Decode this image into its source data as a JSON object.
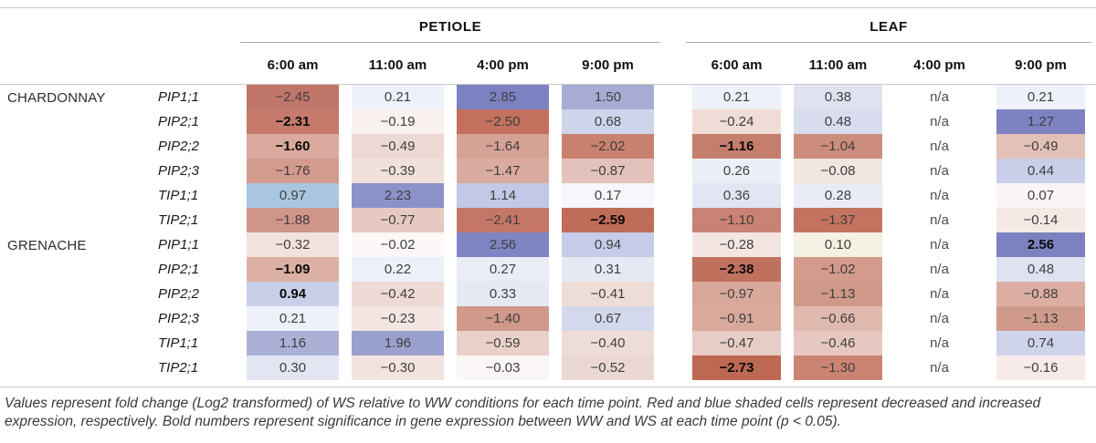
{
  "figure": {
    "groups": {
      "petiole": "PETIOLE",
      "leaf": "LEAF"
    },
    "time_headers": [
      "6:00 am",
      "11:00 am",
      "4:00 pm",
      "9:00 pm"
    ],
    "caption": "Values represent fold change (Log2 transformed) of WS relative to WW conditions for each time point. Red and blue shaded cells represent decreased and increased expression, respectively. Bold numbers represent significance in gene expression between WW and WS at each time point (p < 0.05).",
    "colors": {
      "decreased_strong": "#bd6852",
      "increased_strong": "#7c81c1",
      "neutral": "#ffffff",
      "rule_gray": "#c9c9c9"
    }
  },
  "chart_data": {
    "type": "heatmap",
    "title": "Fold change (Log2) of WS relative to WW",
    "column_groups": [
      "PETIOLE",
      "LEAF"
    ],
    "columns": [
      "PETIOLE 6:00 am",
      "PETIOLE 11:00 am",
      "PETIOLE 4:00 pm",
      "PETIOLE 9:00 pm",
      "LEAF 6:00 am",
      "LEAF 11:00 am",
      "LEAF 4:00 pm",
      "LEAF 9:00 pm"
    ],
    "legend": "red = decreased expression, blue = increased expression, bold = significant (p < 0.05)",
    "rows": [
      {
        "variety": "CHARDONNAY",
        "gene": "PIP1;1",
        "cells": [
          {
            "value": "−2.45",
            "bold": false,
            "color": "#c1766a"
          },
          {
            "value": "0.21",
            "bold": false,
            "color": "#eef1f9"
          },
          {
            "value": "2.85",
            "bold": false,
            "color": "#7c81c1"
          },
          {
            "value": "1.50",
            "bold": false,
            "color": "#a7acd4"
          },
          {
            "value": "0.21",
            "bold": false,
            "color": "#eef1f9"
          },
          {
            "value": "0.38",
            "bold": false,
            "color": "#dfe3f1"
          },
          {
            "value": "n/a",
            "bold": false,
            "color": null
          },
          {
            "value": "0.21",
            "bold": false,
            "color": "#eef1f9"
          }
        ]
      },
      {
        "variety": "",
        "gene": "PIP2;1",
        "cells": [
          {
            "value": "−2.31",
            "bold": true,
            "color": "#c57a6c"
          },
          {
            "value": "−0.19",
            "bold": false,
            "color": "#f9f1ef"
          },
          {
            "value": "−2.50",
            "bold": false,
            "color": "#c3705e"
          },
          {
            "value": "0.68",
            "bold": false,
            "color": "#ced4ea"
          },
          {
            "value": "−0.24",
            "bold": false,
            "color": "#f0ddd7"
          },
          {
            "value": "0.48",
            "bold": false,
            "color": "#d8dcee"
          },
          {
            "value": "n/a",
            "bold": false,
            "color": null
          },
          {
            "value": "1.27",
            "bold": false,
            "color": "#7d82c1"
          }
        ]
      },
      {
        "variety": "",
        "gene": "PIP2;2",
        "cells": [
          {
            "value": "−1.60",
            "bold": true,
            "color": "#dba99d"
          },
          {
            "value": "−0.49",
            "bold": false,
            "color": "#ecd9d4"
          },
          {
            "value": "−1.64",
            "bold": false,
            "color": "#d6a296"
          },
          {
            "value": "−2.02",
            "bold": false,
            "color": "#c8816e"
          },
          {
            "value": "−1.16",
            "bold": true,
            "color": "#c67e6c"
          },
          {
            "value": "−1.04",
            "bold": false,
            "color": "#cc8d7d"
          },
          {
            "value": "n/a",
            "bold": false,
            "color": null
          },
          {
            "value": "−0.49",
            "bold": false,
            "color": "#e4c1b8"
          }
        ]
      },
      {
        "variety": "",
        "gene": "PIP2;3",
        "cells": [
          {
            "value": "−1.76",
            "bold": false,
            "color": "#d39a8e"
          },
          {
            "value": "−0.39",
            "bold": false,
            "color": "#f0e1dc"
          },
          {
            "value": "−1.47",
            "bold": false,
            "color": "#daaca1"
          },
          {
            "value": "−0.87",
            "bold": false,
            "color": "#e2c2ba"
          },
          {
            "value": "0.26",
            "bold": false,
            "color": "#eceff8"
          },
          {
            "value": "−0.08",
            "bold": false,
            "color": "#f2e6e1"
          },
          {
            "value": "n/a",
            "bold": false,
            "color": null
          },
          {
            "value": "0.44",
            "bold": false,
            "color": "#c9cfe8"
          }
        ]
      },
      {
        "variety": "",
        "gene": "TIP1;1",
        "cells": [
          {
            "value": "0.97",
            "bold": false,
            "color": "#a9c6e0"
          },
          {
            "value": "2.23",
            "bold": false,
            "color": "#8b92c9"
          },
          {
            "value": "1.14",
            "bold": false,
            "color": "#c2c9e6"
          },
          {
            "value": "0.17",
            "bold": false,
            "color": "#f5f7fb"
          },
          {
            "value": "0.36",
            "bold": false,
            "color": "#e2e5f2"
          },
          {
            "value": "0.28",
            "bold": false,
            "color": "#e9ecf6"
          },
          {
            "value": "n/a",
            "bold": false,
            "color": null
          },
          {
            "value": "0.07",
            "bold": false,
            "color": "#f9f5f4"
          }
        ]
      },
      {
        "variety": "",
        "gene": "TIP2;1",
        "cells": [
          {
            "value": "−1.88",
            "bold": false,
            "color": "#cf9589"
          },
          {
            "value": "−0.77",
            "bold": false,
            "color": "#e6cac1"
          },
          {
            "value": "−2.41",
            "bold": false,
            "color": "#c57767"
          },
          {
            "value": "−2.59",
            "bold": true,
            "color": "#bf6c58"
          },
          {
            "value": "−1.10",
            "bold": false,
            "color": "#c98273"
          },
          {
            "value": "−1.37",
            "bold": false,
            "color": "#c3735f"
          },
          {
            "value": "n/a",
            "bold": false,
            "color": null
          },
          {
            "value": "−0.14",
            "bold": false,
            "color": "#f5e9e6"
          }
        ]
      },
      {
        "variety": "GRENACHE",
        "gene": "PIP1;1",
        "cells": [
          {
            "value": "−0.32",
            "bold": false,
            "color": "#f2e2dd"
          },
          {
            "value": "−0.02",
            "bold": false,
            "color": "#fcf8f7"
          },
          {
            "value": "2.56",
            "bold": false,
            "color": "#7f84c2"
          },
          {
            "value": "0.94",
            "bold": false,
            "color": "#c6cce8"
          },
          {
            "value": "−0.28",
            "bold": false,
            "color": "#f5e5e2"
          },
          {
            "value": "0.10",
            "bold": false,
            "color": "#f5f2e3"
          },
          {
            "value": "n/a",
            "bold": false,
            "color": null
          },
          {
            "value": "2.56",
            "bold": true,
            "color": "#7c81c0"
          }
        ]
      },
      {
        "variety": "",
        "gene": "PIP2;1",
        "cells": [
          {
            "value": "−1.09",
            "bold": true,
            "color": "#dcb0a4"
          },
          {
            "value": "0.22",
            "bold": false,
            "color": "#edf0f8"
          },
          {
            "value": "0.27",
            "bold": false,
            "color": "#eaedf7"
          },
          {
            "value": "0.31",
            "bold": false,
            "color": "#e6e9f4"
          },
          {
            "value": "−2.38",
            "bold": true,
            "color": "#c0715e"
          },
          {
            "value": "−1.02",
            "bold": false,
            "color": "#d49a8b"
          },
          {
            "value": "n/a",
            "bold": false,
            "color": null
          },
          {
            "value": "0.48",
            "bold": false,
            "color": "#dee2f1"
          }
        ]
      },
      {
        "variety": "",
        "gene": "PIP2;2",
        "cells": [
          {
            "value": "0.94",
            "bold": true,
            "color": "#c9cfe9"
          },
          {
            "value": "−0.42",
            "bold": false,
            "color": "#eddad5"
          },
          {
            "value": "0.33",
            "bold": false,
            "color": "#e5e9f4"
          },
          {
            "value": "−0.41",
            "bold": false,
            "color": "#eedcd7"
          },
          {
            "value": "−0.97",
            "bold": false,
            "color": "#d8a89b"
          },
          {
            "value": "−1.13",
            "bold": false,
            "color": "#d09888"
          },
          {
            "value": "n/a",
            "bold": false,
            "color": null
          },
          {
            "value": "−0.88",
            "bold": false,
            "color": "#dcaea2"
          }
        ]
      },
      {
        "variety": "",
        "gene": "PIP2;3",
        "cells": [
          {
            "value": "0.21",
            "bold": false,
            "color": "#eef1f9"
          },
          {
            "value": "−0.23",
            "bold": false,
            "color": "#f4e6e2"
          },
          {
            "value": "−1.40",
            "bold": false,
            "color": "#d0998b"
          },
          {
            "value": "0.67",
            "bold": false,
            "color": "#d3d8ec"
          },
          {
            "value": "−0.91",
            "bold": false,
            "color": "#d9a99c"
          },
          {
            "value": "−0.66",
            "bold": false,
            "color": "#e0b9ae"
          },
          {
            "value": "n/a",
            "bold": false,
            "color": null
          },
          {
            "value": "−1.13",
            "bold": false,
            "color": "#d09a8b"
          }
        ]
      },
      {
        "variety": "",
        "gene": "TIP1;1",
        "cells": [
          {
            "value": "1.16",
            "bold": false,
            "color": "#abb0d7"
          },
          {
            "value": "1.96",
            "bold": false,
            "color": "#9aa1cf"
          },
          {
            "value": "−0.59",
            "bold": false,
            "color": "#ead2cb"
          },
          {
            "value": "−0.40",
            "bold": false,
            "color": "#eedcd8"
          },
          {
            "value": "−0.47",
            "bold": false,
            "color": "#e7cdc5"
          },
          {
            "value": "−0.46",
            "bold": false,
            "color": "#e6c8c0"
          },
          {
            "value": "n/a",
            "bold": false,
            "color": null
          },
          {
            "value": "0.74",
            "bold": false,
            "color": "#cfd4eb"
          }
        ]
      },
      {
        "variety": "",
        "gene": "TIP2;1",
        "cells": [
          {
            "value": "0.30",
            "bold": false,
            "color": "#e3e6f2"
          },
          {
            "value": "−0.30",
            "bold": false,
            "color": "#f3e3df"
          },
          {
            "value": "−0.03",
            "bold": false,
            "color": "#fbf7f6"
          },
          {
            "value": "−0.52",
            "bold": false,
            "color": "#ebd8d2"
          },
          {
            "value": "−2.73",
            "bold": true,
            "color": "#bd6852"
          },
          {
            "value": "−1.30",
            "bold": false,
            "color": "#cb8472"
          },
          {
            "value": "n/a",
            "bold": false,
            "color": null
          },
          {
            "value": "−0.16",
            "bold": false,
            "color": "#f6ebe8"
          }
        ]
      }
    ]
  }
}
